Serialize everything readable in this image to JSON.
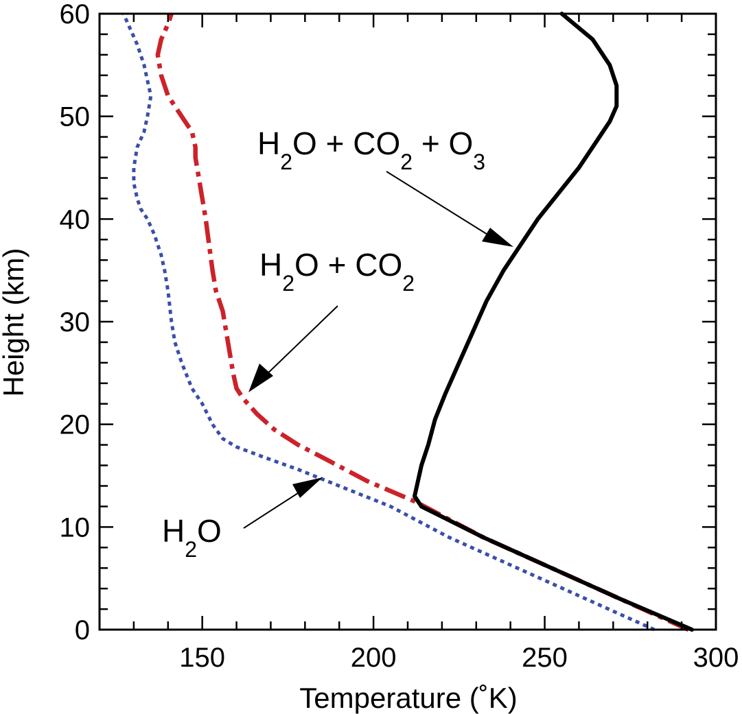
{
  "chart_data": {
    "type": "line",
    "title": "",
    "xlabel": "Temperature (˚K)",
    "ylabel": "Height (km)",
    "xlim": [
      120,
      300
    ],
    "ylim": [
      0,
      60
    ],
    "xticks": [
      150,
      200,
      250,
      300
    ],
    "yticks": [
      0,
      10,
      20,
      30,
      40,
      50,
      60
    ],
    "grid": false,
    "legend": "none",
    "series": [
      {
        "style": "dotted",
        "color": "#3a4fa8",
        "x": [
          282,
          262,
          242,
          222,
          205,
          190,
          178,
          168,
          160,
          156,
          153,
          150,
          147,
          144,
          142,
          141,
          140,
          139,
          138,
          136,
          134,
          132,
          131,
          130,
          130,
          131,
          133,
          134,
          135,
          134,
          133,
          131,
          129,
          127
        ],
        "y": [
          0,
          3,
          6,
          9,
          12,
          14,
          15.6,
          16.8,
          17.8,
          18.6,
          20,
          22,
          23.5,
          26,
          28,
          30,
          33,
          35,
          36.5,
          38.5,
          40,
          41,
          42,
          43.5,
          45,
          47,
          48.5,
          50,
          52,
          53.5,
          55,
          57,
          58.5,
          60
        ]
      },
      {
        "style": "dash-dot",
        "color": "#cc2229",
        "x": [
          292,
          272,
          252,
          232,
          212,
          198,
          185,
          178,
          171,
          166,
          162,
          160,
          159,
          158,
          157,
          156,
          154,
          153,
          152,
          151,
          150,
          149,
          148,
          148,
          147,
          145,
          143,
          140,
          138,
          137,
          138,
          140,
          141
        ],
        "y": [
          0,
          3,
          6,
          9,
          12.5,
          14.5,
          16.8,
          18,
          19.5,
          21,
          22.5,
          23.5,
          25,
          27,
          29,
          31,
          33,
          35,
          37.5,
          40,
          42,
          44,
          46,
          47,
          48.5,
          49.5,
          50.5,
          52,
          54,
          56,
          57.5,
          59,
          60
        ]
      },
      {
        "style": "solid",
        "color": "#000000",
        "x": [
          293,
          272,
          252,
          232,
          214,
          212,
          213,
          214,
          216,
          218,
          221,
          225,
          229,
          233,
          238,
          243,
          248,
          254,
          260,
          265,
          269,
          271,
          271,
          269,
          264,
          255
        ],
        "y": [
          0,
          3,
          6,
          9,
          12,
          13,
          14.5,
          16,
          18,
          20.5,
          23,
          26,
          29,
          32,
          35,
          37.5,
          40,
          42.5,
          45,
          47.5,
          49.5,
          51,
          53,
          55,
          57.5,
          60
        ]
      }
    ],
    "annotations": [
      {
        "base": "H",
        "sub": "2",
        "rest": "O + CO",
        "sub2": "2",
        "rest2": " + O",
        "sub3": "3"
      },
      {
        "base": "H",
        "sub": "2",
        "rest": "O + CO",
        "sub2": "2"
      },
      {
        "base": "H",
        "sub": "2",
        "rest": "O"
      }
    ]
  }
}
